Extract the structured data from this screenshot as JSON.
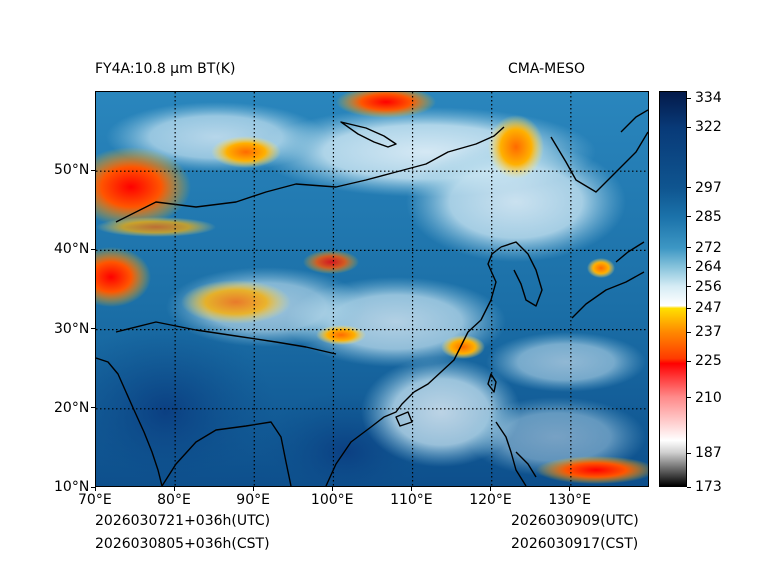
{
  "header": {
    "title_left": "FY4A:10.8 μm BT(K)",
    "title_right": "CMA-MESO"
  },
  "footer": {
    "init_utc": "2026030721+036h(UTC)",
    "init_cst": "2026030805+036h(CST)",
    "valid_utc": "2026030909(UTC)",
    "valid_cst": "2026030917(CST)"
  },
  "map": {
    "lon_range": [
      70,
      140
    ],
    "lat_range": [
      10,
      60
    ],
    "lon_ticks": [
      {
        "value": 70,
        "label": "70°E"
      },
      {
        "value": 80,
        "label": "80°E"
      },
      {
        "value": 90,
        "label": "90°E"
      },
      {
        "value": 100,
        "label": "100°E"
      },
      {
        "value": 110,
        "label": "110°E"
      },
      {
        "value": 120,
        "label": "120°E"
      },
      {
        "value": 130,
        "label": "130°E"
      }
    ],
    "lat_ticks": [
      {
        "value": 10,
        "label": "10°N"
      },
      {
        "value": 20,
        "label": "20°N"
      },
      {
        "value": 30,
        "label": "30°N"
      },
      {
        "value": 40,
        "label": "40°N"
      },
      {
        "value": 50,
        "label": "50°N"
      }
    ]
  },
  "colorbar": {
    "range": [
      173,
      337
    ],
    "ticks": [
      {
        "value": 334,
        "label": "334"
      },
      {
        "value": 322,
        "label": "322"
      },
      {
        "value": 297,
        "label": "297"
      },
      {
        "value": 285,
        "label": "285"
      },
      {
        "value": 272,
        "label": "272"
      },
      {
        "value": 264,
        "label": "264"
      },
      {
        "value": 256,
        "label": "256"
      },
      {
        "value": 247,
        "label": "247"
      },
      {
        "value": 237,
        "label": "237"
      },
      {
        "value": 225,
        "label": "225"
      },
      {
        "value": 210,
        "label": "210"
      },
      {
        "value": 187,
        "label": "187"
      },
      {
        "value": 173,
        "label": "173"
      }
    ],
    "stops": [
      {
        "value": 173,
        "color": "#000000"
      },
      {
        "value": 187,
        "color": "#d0d0d0"
      },
      {
        "value": 192,
        "color": "#ffffff"
      },
      {
        "value": 210,
        "color": "#ff8a8a"
      },
      {
        "value": 224,
        "color": "#ff0000"
      },
      {
        "value": 226,
        "color": "#ff3a00"
      },
      {
        "value": 237,
        "color": "#ff8800"
      },
      {
        "value": 247,
        "color": "#ffe000"
      },
      {
        "value": 248,
        "color": "#ffffff"
      },
      {
        "value": 256,
        "color": "#d6ecf5"
      },
      {
        "value": 264,
        "color": "#88c4dc"
      },
      {
        "value": 272,
        "color": "#3d97c4"
      },
      {
        "value": 285,
        "color": "#1b72aa"
      },
      {
        "value": 297,
        "color": "#0f5590"
      },
      {
        "value": 322,
        "color": "#083a78"
      },
      {
        "value": 337,
        "color": "#041a4a"
      }
    ]
  }
}
